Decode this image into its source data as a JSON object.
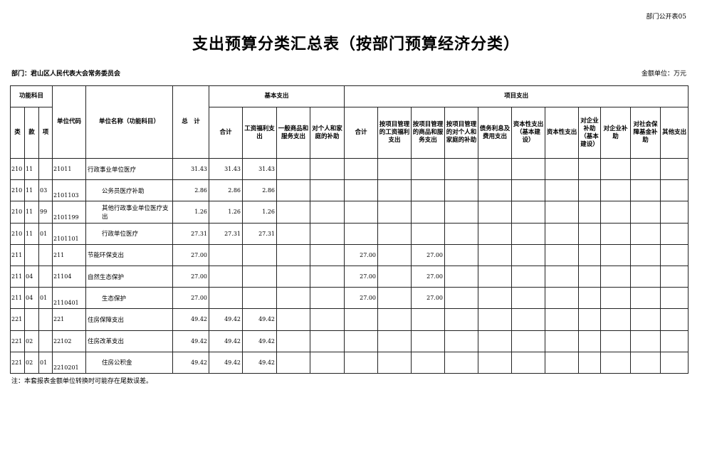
{
  "form_id": "部门公开表05",
  "title": "支出预算分类汇总表（按部门预算经济分类）",
  "department": "部门：君山区人民代表大会常务委员会",
  "unit": "金额单位：万元",
  "headers": {
    "func_subject": "功能科目",
    "lei": "类",
    "kuan": "款",
    "xiang": "项",
    "unit_code": "单位代码",
    "unit_name": "单位名称（功能科目）",
    "total": "总　计",
    "basic": "基本支出",
    "basic_cols": [
      "合计",
      "工资福利支出",
      "一般商品和服务支出",
      "对个人和家庭的补助"
    ],
    "project": "项目支出",
    "project_cols": [
      "合计",
      "按项目管理的工资福利支出",
      "按项目管理的商品和服务支出",
      "按项目管理的对个人和家庭的补助",
      "债务利息及费用支出",
      "资本性支出（基本建设）",
      "资本性支出",
      "对企业补助（基本建设）",
      "对企业补助",
      "对社会保障基金补助",
      "其他支出"
    ]
  },
  "rows": [
    {
      "lei": "210",
      "kuan": "11",
      "xiang": "",
      "code": "21011",
      "name": "行政事业单位医疗",
      "sub": false,
      "total": "31.43",
      "b": [
        "31.43",
        "31.43",
        "",
        ""
      ],
      "p": [
        "",
        "",
        "",
        "",
        "",
        "",
        "",
        "",
        "",
        "",
        ""
      ]
    },
    {
      "lei": "210",
      "kuan": "11",
      "xiang": "03",
      "code": "2101103",
      "name": "公务员医疗补助",
      "sub": true,
      "total": "2.86",
      "b": [
        "2.86",
        "2.86",
        "",
        ""
      ],
      "p": [
        "",
        "",
        "",
        "",
        "",
        "",
        "",
        "",
        "",
        "",
        ""
      ]
    },
    {
      "lei": "210",
      "kuan": "11",
      "xiang": "99",
      "code": "2101199",
      "name": "其他行政事业单位医疗支出",
      "sub": true,
      "total": "1.26",
      "b": [
        "1.26",
        "1.26",
        "",
        ""
      ],
      "p": [
        "",
        "",
        "",
        "",
        "",
        "",
        "",
        "",
        "",
        "",
        ""
      ]
    },
    {
      "lei": "210",
      "kuan": "11",
      "xiang": "01",
      "code": "2101101",
      "name": "行政单位医疗",
      "sub": true,
      "total": "27.31",
      "b": [
        "27.31",
        "27.31",
        "",
        ""
      ],
      "p": [
        "",
        "",
        "",
        "",
        "",
        "",
        "",
        "",
        "",
        "",
        ""
      ]
    },
    {
      "lei": "211",
      "kuan": "",
      "xiang": "",
      "code": "211",
      "name": "节能环保支出",
      "sub": false,
      "total": "27.00",
      "b": [
        "",
        "",
        "",
        ""
      ],
      "p": [
        "27.00",
        "",
        "27.00",
        "",
        "",
        "",
        "",
        "",
        "",
        "",
        ""
      ]
    },
    {
      "lei": "211",
      "kuan": "04",
      "xiang": "",
      "code": "21104",
      "name": "自然生态保护",
      "sub": false,
      "total": "27.00",
      "b": [
        "",
        "",
        "",
        ""
      ],
      "p": [
        "27.00",
        "",
        "27.00",
        "",
        "",
        "",
        "",
        "",
        "",
        "",
        ""
      ]
    },
    {
      "lei": "211",
      "kuan": "04",
      "xiang": "01",
      "code": "2110401",
      "name": "生态保护",
      "sub": true,
      "total": "27.00",
      "b": [
        "",
        "",
        "",
        ""
      ],
      "p": [
        "27.00",
        "",
        "27.00",
        "",
        "",
        "",
        "",
        "",
        "",
        "",
        ""
      ]
    },
    {
      "lei": "221",
      "kuan": "",
      "xiang": "",
      "code": "221",
      "name": "住房保障支出",
      "sub": false,
      "total": "49.42",
      "b": [
        "49.42",
        "49.42",
        "",
        ""
      ],
      "p": [
        "",
        "",
        "",
        "",
        "",
        "",
        "",
        "",
        "",
        "",
        ""
      ]
    },
    {
      "lei": "221",
      "kuan": "02",
      "xiang": "",
      "code": "22102",
      "name": "住房改革支出",
      "sub": false,
      "total": "49.42",
      "b": [
        "49.42",
        "49.42",
        "",
        ""
      ],
      "p": [
        "",
        "",
        "",
        "",
        "",
        "",
        "",
        "",
        "",
        "",
        ""
      ]
    },
    {
      "lei": "221",
      "kuan": "02",
      "xiang": "01",
      "code": "2210201",
      "name": "住房公积金",
      "sub": true,
      "total": "49.42",
      "b": [
        "49.42",
        "49.42",
        "",
        ""
      ],
      "p": [
        "",
        "",
        "",
        "",
        "",
        "",
        "",
        "",
        "",
        "",
        ""
      ]
    }
  ],
  "note": "注：本套报表金额单位转换时可能存在尾数误差。"
}
